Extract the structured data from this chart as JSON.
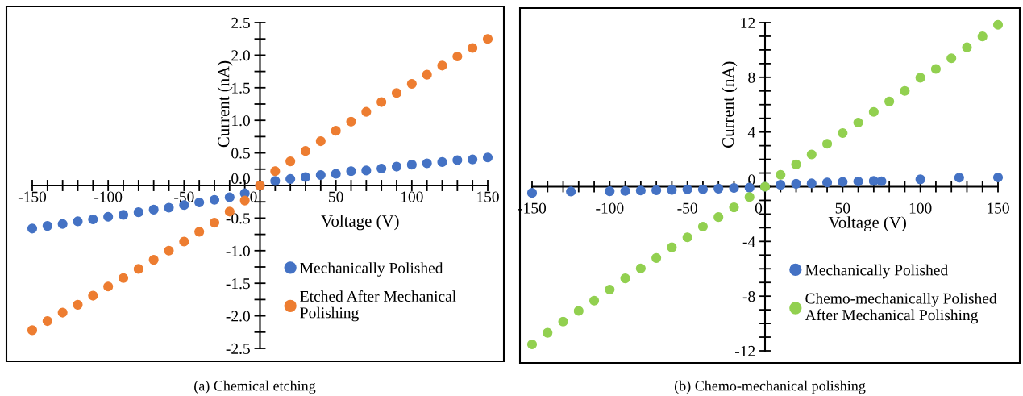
{
  "chart_data": [
    {
      "type": "scatter",
      "xlabel": "Voltage (V)",
      "ylabel": "Current (nA)",
      "annotations": [
        "(a) Chemical etching"
      ],
      "marker": "circle",
      "grid": false,
      "legend": "bottom right",
      "xlim": [
        -150,
        150
      ],
      "ylim": [
        -2.5,
        2.5
      ],
      "xticks": [
        {
          "value": -150,
          "label": "-150"
        },
        {
          "value": -140,
          "label": null
        },
        {
          "value": -130,
          "label": null
        },
        {
          "value": -120,
          "label": null
        },
        {
          "value": -110,
          "label": null
        },
        {
          "value": -100,
          "label": "-100"
        },
        {
          "value": -90,
          "label": null
        },
        {
          "value": -80,
          "label": null
        },
        {
          "value": -70,
          "label": null
        },
        {
          "value": -60,
          "label": null
        },
        {
          "value": -50,
          "label": "-50"
        },
        {
          "value": -40,
          "label": null
        },
        {
          "value": -30,
          "label": null
        },
        {
          "value": -20,
          "label": null
        },
        {
          "value": -10,
          "label": null
        },
        0,
        {
          "value": 10,
          "label": null
        },
        {
          "value": 20,
          "label": null
        },
        {
          "value": 30,
          "label": null
        },
        {
          "value": 40,
          "label": null
        },
        50,
        {
          "value": 60,
          "label": null
        },
        {
          "value": 70,
          "label": null
        },
        {
          "value": 80,
          "label": null
        },
        {
          "value": 90,
          "label": null
        },
        100,
        {
          "value": 110,
          "label": null
        },
        {
          "value": 120,
          "label": null
        },
        {
          "value": 130,
          "label": null
        },
        {
          "value": 140,
          "label": null
        },
        150
      ],
      "yticks": [
        {
          "value": -2.5,
          "label": "-2.5"
        },
        {
          "value": -2.25,
          "label": null
        },
        {
          "value": -2.0,
          "label": "-2.0"
        },
        {
          "value": -1.75,
          "label": null
        },
        {
          "value": -1.5,
          "label": "-1.5"
        },
        {
          "value": -1.25,
          "label": null
        },
        {
          "value": -1.0,
          "label": "-1.0"
        },
        {
          "value": -0.75,
          "label": null
        },
        {
          "value": -0.5,
          "label": "-0.5"
        },
        {
          "value": -0.25,
          "label": null
        },
        {
          "value": 0,
          "label": "0.0"
        },
        {
          "value": 0.25,
          "label": null
        },
        {
          "value": 0.5,
          "label": "0.5"
        },
        {
          "value": 0.75,
          "label": null
        },
        {
          "value": 1.0,
          "label": "1.0"
        },
        {
          "value": 1.25,
          "label": null
        },
        {
          "value": 1.5,
          "label": "1.5"
        },
        {
          "value": 1.75,
          "label": null
        },
        {
          "value": 2.0,
          "label": "2.0"
        },
        {
          "value": 2.25,
          "label": null
        },
        {
          "value": 2.5,
          "label": "2.5"
        }
      ],
      "series": [
        {
          "name": "Mechanically Polished",
          "color": "#4472c4",
          "x": [
            -150,
            -140,
            -130,
            -120,
            -110,
            -100,
            -90,
            -80,
            -70,
            -60,
            -50,
            -40,
            -30,
            -20,
            -10,
            0,
            10,
            20,
            30,
            40,
            50,
            60,
            70,
            80,
            90,
            100,
            110,
            120,
            130,
            140,
            150
          ],
          "values": [
            -0.66,
            -0.62,
            -0.59,
            -0.55,
            -0.52,
            -0.48,
            -0.45,
            -0.41,
            -0.37,
            -0.34,
            -0.3,
            -0.26,
            -0.22,
            -0.18,
            -0.12,
            0,
            0.07,
            0.1,
            0.13,
            0.16,
            0.18,
            0.22,
            0.23,
            0.26,
            0.29,
            0.32,
            0.34,
            0.36,
            0.39,
            0.4,
            0.43
          ]
        },
        {
          "name": "Etched After Mechanical\nPolishing",
          "color": "#ed7d31",
          "x": [
            -150,
            -140,
            -130,
            -120,
            -110,
            -100,
            -90,
            -80,
            -70,
            -60,
            -50,
            -40,
            -30,
            -20,
            -10,
            0,
            10,
            20,
            30,
            40,
            50,
            60,
            70,
            80,
            90,
            100,
            110,
            120,
            130,
            140,
            150
          ],
          "values": [
            -2.22,
            -2.08,
            -1.95,
            -1.83,
            -1.69,
            -1.55,
            -1.42,
            -1.28,
            -1.14,
            -1.0,
            -0.86,
            -0.71,
            -0.57,
            -0.4,
            -0.23,
            0,
            0.22,
            0.37,
            0.53,
            0.68,
            0.84,
            0.98,
            1.13,
            1.28,
            1.42,
            1.56,
            1.7,
            1.84,
            1.98,
            2.11,
            2.25
          ]
        }
      ]
    },
    {
      "type": "scatter",
      "xlabel": "Voltage (V)",
      "ylabel": "Current (nA)",
      "annotations": [
        "(b) Chemo-mechanical polishing"
      ],
      "marker": "circle",
      "grid": false,
      "legend": "bottom right",
      "xlim": [
        -150,
        150
      ],
      "ylim": [
        -12,
        12
      ],
      "xticks": [
        {
          "value": -150,
          "label": "-150"
        },
        {
          "value": -140,
          "label": null
        },
        {
          "value": -130,
          "label": null
        },
        {
          "value": -120,
          "label": null
        },
        {
          "value": -110,
          "label": null
        },
        {
          "value": -100,
          "label": "-100"
        },
        {
          "value": -90,
          "label": null
        },
        {
          "value": -80,
          "label": null
        },
        {
          "value": -70,
          "label": null
        },
        {
          "value": -60,
          "label": null
        },
        {
          "value": -50,
          "label": "-50"
        },
        {
          "value": -40,
          "label": null
        },
        {
          "value": -30,
          "label": null
        },
        {
          "value": -20,
          "label": null
        },
        {
          "value": -10,
          "label": null
        },
        0,
        {
          "value": 10,
          "label": null
        },
        {
          "value": 20,
          "label": null
        },
        {
          "value": 30,
          "label": null
        },
        {
          "value": 40,
          "label": null
        },
        50,
        {
          "value": 60,
          "label": null
        },
        {
          "value": 70,
          "label": null
        },
        {
          "value": 80,
          "label": null
        },
        {
          "value": 90,
          "label": null
        },
        100,
        {
          "value": 110,
          "label": null
        },
        {
          "value": 120,
          "label": null
        },
        {
          "value": 130,
          "label": null
        },
        {
          "value": 140,
          "label": null
        },
        150
      ],
      "yticks": [
        {
          "value": -12,
          "label": "-12"
        },
        {
          "value": -11,
          "label": null
        },
        {
          "value": -10,
          "label": null
        },
        {
          "value": -9,
          "label": null
        },
        {
          "value": -8,
          "label": "-8"
        },
        {
          "value": -7,
          "label": null
        },
        {
          "value": -6,
          "label": null
        },
        {
          "value": -5,
          "label": null
        },
        {
          "value": -4,
          "label": "-4"
        },
        {
          "value": -3,
          "label": null
        },
        {
          "value": -2,
          "label": null
        },
        {
          "value": -1,
          "label": null
        },
        0,
        {
          "value": 1,
          "label": null
        },
        {
          "value": 2,
          "label": null
        },
        {
          "value": 3,
          "label": null
        },
        4,
        {
          "value": 5,
          "label": null
        },
        {
          "value": 6,
          "label": null
        },
        {
          "value": 7,
          "label": null
        },
        8,
        {
          "value": 9,
          "label": null
        },
        {
          "value": 10,
          "label": null
        },
        {
          "value": 11,
          "label": null
        },
        12
      ],
      "series": [
        {
          "name": "Mechanically Polished",
          "color": "#4472c4",
          "x": [
            -150,
            -125,
            -100,
            -90,
            -80,
            -70,
            -60,
            -50,
            -40,
            -30,
            -20,
            -10,
            0,
            10,
            20,
            30,
            40,
            50,
            60,
            70,
            75,
            100,
            125,
            150
          ],
          "values": [
            -0.45,
            -0.35,
            -0.33,
            -0.31,
            -0.28,
            -0.26,
            -0.24,
            -0.19,
            -0.19,
            -0.14,
            -0.09,
            -0.07,
            0,
            0.14,
            0.21,
            0.24,
            0.31,
            0.35,
            0.38,
            0.42,
            0.4,
            0.54,
            0.66,
            0.68
          ]
        },
        {
          "name": "Chemo-mechanically Polished\nAfter Mechanical Polishing",
          "color": "#92d050",
          "x": [
            -150,
            -140,
            -130,
            -120,
            -110,
            -100,
            -90,
            -80,
            -70,
            -60,
            -50,
            -40,
            -30,
            -20,
            -10,
            0,
            10,
            20,
            30,
            40,
            50,
            60,
            70,
            80,
            90,
            100,
            110,
            120,
            130,
            140,
            150
          ],
          "values": [
            -11.53,
            -10.68,
            -9.86,
            -9.08,
            -8.33,
            -7.52,
            -6.7,
            -5.97,
            -5.21,
            -4.43,
            -3.7,
            -2.92,
            -2.22,
            -1.51,
            -0.75,
            0,
            0.87,
            1.63,
            2.36,
            3.14,
            3.92,
            4.69,
            5.47,
            6.23,
            7.0,
            7.97,
            8.61,
            9.39,
            10.19,
            10.99,
            11.84
          ]
        }
      ]
    }
  ]
}
